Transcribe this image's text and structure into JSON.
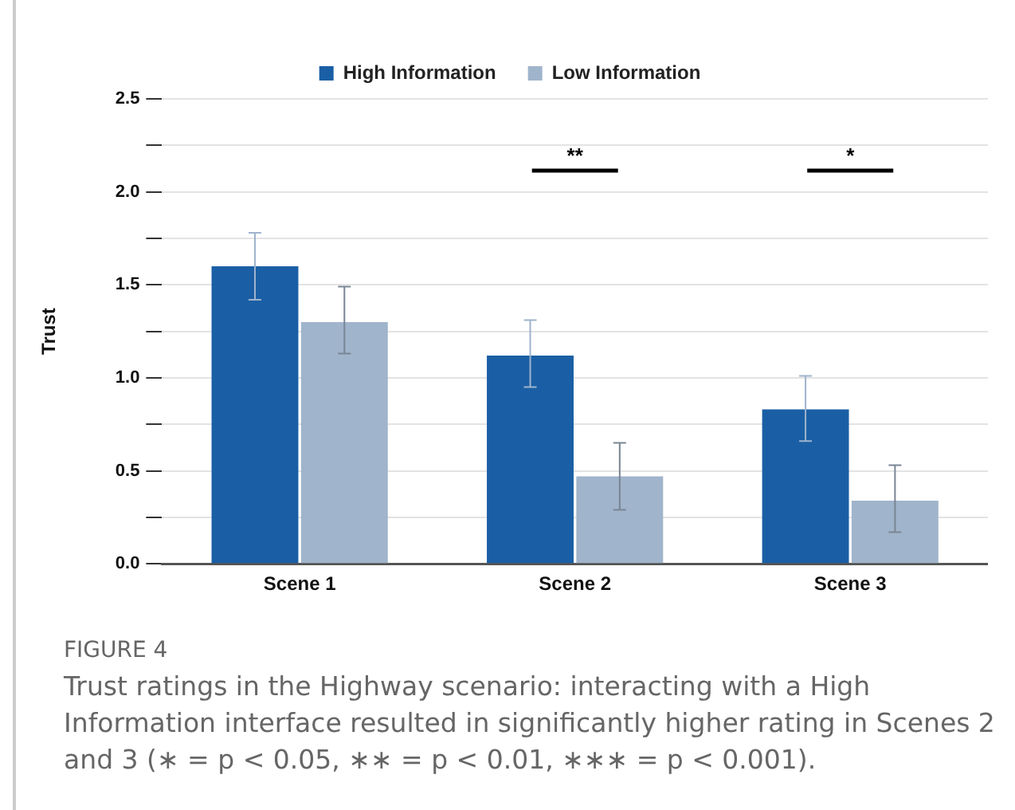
{
  "chart_data": {
    "type": "bar",
    "ylabel": "Trust",
    "categories": [
      "Scene 1",
      "Scene 2",
      "Scene 3"
    ],
    "series": [
      {
        "name": "High Information",
        "color": "#1a5fa5",
        "values": [
          1.6,
          1.12,
          0.83
        ],
        "errors": [
          [
            1.42,
            1.78
          ],
          [
            0.95,
            1.31
          ],
          [
            0.66,
            1.01
          ]
        ]
      },
      {
        "name": "Low Information",
        "color": "#a0b4cb",
        "values": [
          1.3,
          0.47,
          0.34
        ],
        "errors": [
          [
            1.13,
            1.49
          ],
          [
            0.29,
            0.65
          ],
          [
            0.17,
            0.53
          ]
        ]
      }
    ],
    "ylim": [
      0,
      2.5
    ],
    "yticks": [
      {
        "value": 0,
        "label": "0.0"
      },
      {
        "value": 0.25,
        "label": null
      },
      0.5,
      {
        "value": 0.75,
        "label": null
      },
      {
        "value": 1,
        "label": "1.0"
      },
      {
        "value": 1.25,
        "label": null
      },
      1.5,
      {
        "value": 1.75,
        "label": null
      },
      {
        "value": 2,
        "label": "2.0"
      },
      {
        "value": 2.25,
        "label": null
      },
      2.5
    ],
    "grid": "y",
    "legend": "top",
    "annotations": [
      "**",
      "*",
      "FIGURE 4",
      "Trust ratings in the Highway scenario: interacting with a High Information interface resulted in significantly higher rating in Scenes 2 and 3 (∗ = p < 0.05, ∗∗ = p < 0.01, ∗∗∗ = p < 0.001)."
    ]
  }
}
